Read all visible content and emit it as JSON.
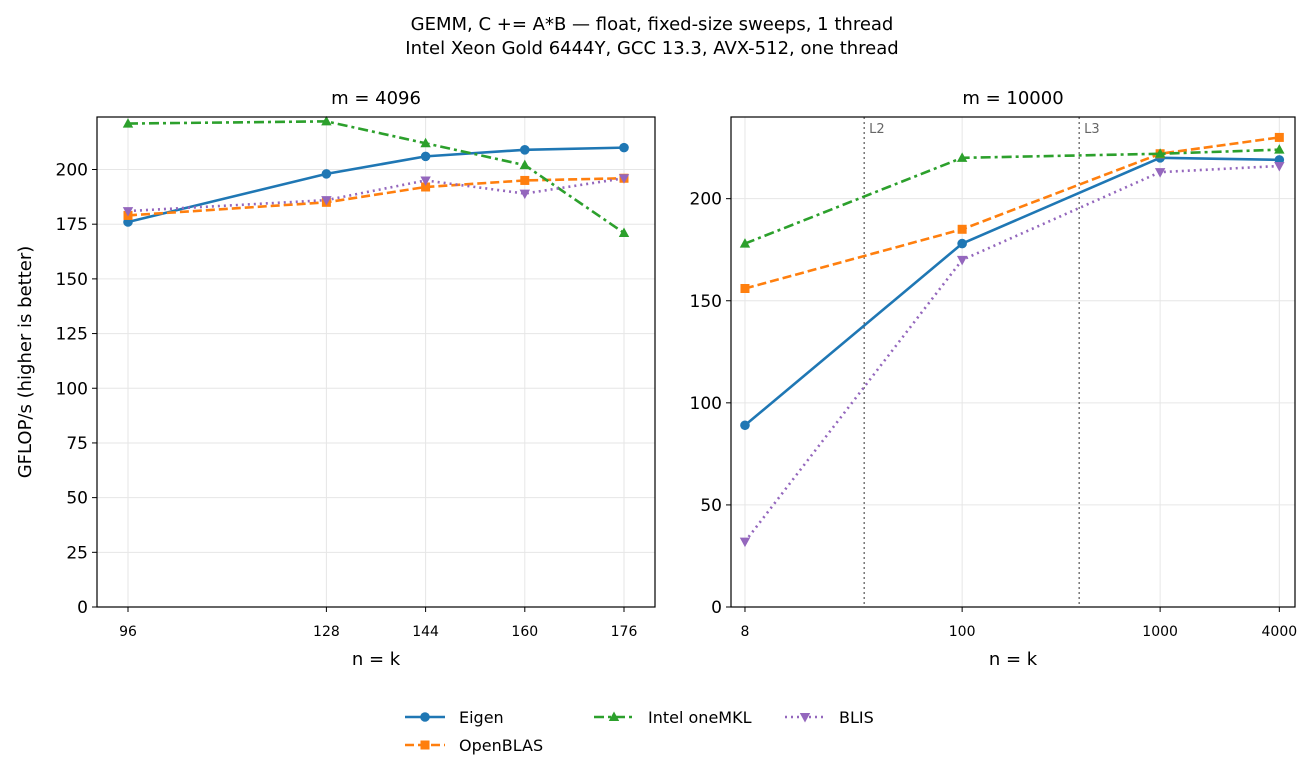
{
  "title_line1": "GEMM, C += A*B — float, fixed-size sweeps, 1 thread",
  "title_line2": "Intel Xeon Gold 6444Y, GCC 13.3, AVX-512, one thread",
  "legend": {
    "entries": [
      {
        "name": "Eigen",
        "color": "#1f77b4",
        "marker": "circle",
        "dash": "solid"
      },
      {
        "name": "OpenBLAS",
        "color": "#ff7f0e",
        "marker": "square",
        "dash": "dashed"
      },
      {
        "name": "Intel oneMKL",
        "color": "#2ca02c",
        "marker": "triangle-up",
        "dash": "dashdot"
      },
      {
        "name": "BLIS",
        "color": "#9467bd",
        "marker": "triangle-down",
        "dash": "dotted"
      }
    ],
    "placement": "bottom-center"
  },
  "chart_data": [
    {
      "type": "line",
      "title": "m = 4096",
      "xlabel": "n = k",
      "ylabel": "GFLOP/s (higher is better)",
      "x_scale": "linear",
      "x": [
        96,
        128,
        144,
        160,
        176
      ],
      "x_tick_labels": [
        "96",
        "128",
        "144",
        "160",
        "176"
      ],
      "y_ticks": [
        0,
        25,
        50,
        75,
        100,
        125,
        150,
        175,
        200
      ],
      "ylim": [
        0,
        224
      ],
      "grid": true,
      "series": [
        {
          "name": "Eigen",
          "values": [
            176,
            198,
            206,
            209,
            210
          ]
        },
        {
          "name": "OpenBLAS",
          "values": [
            179,
            185,
            192,
            195,
            196
          ]
        },
        {
          "name": "Intel oneMKL",
          "values": [
            221,
            222,
            212,
            202,
            171
          ]
        },
        {
          "name": "BLIS",
          "values": [
            181,
            186,
            195,
            189,
            196
          ]
        }
      ],
      "vlines": []
    },
    {
      "type": "line",
      "title": "m = 10000",
      "xlabel": "n = k",
      "ylabel": "",
      "x_scale": "log",
      "x": [
        8,
        100,
        1000,
        4000
      ],
      "x_tick_labels": [
        "8",
        "100",
        "1000",
        "4000"
      ],
      "y_ticks": [
        0,
        50,
        100,
        150,
        200
      ],
      "ylim": [
        0,
        240
      ],
      "grid": true,
      "series": [
        {
          "name": "Eigen",
          "values": [
            89,
            178,
            220,
            219
          ]
        },
        {
          "name": "OpenBLAS",
          "values": [
            156,
            185,
            222,
            230
          ]
        },
        {
          "name": "Intel oneMKL",
          "values": [
            178,
            220,
            222,
            224
          ]
        },
        {
          "name": "BLIS",
          "values": [
            32,
            170,
            213,
            216
          ]
        }
      ],
      "vlines": [
        {
          "label": "L2",
          "x": 32
        },
        {
          "label": "L3",
          "x": 390
        }
      ]
    }
  ]
}
